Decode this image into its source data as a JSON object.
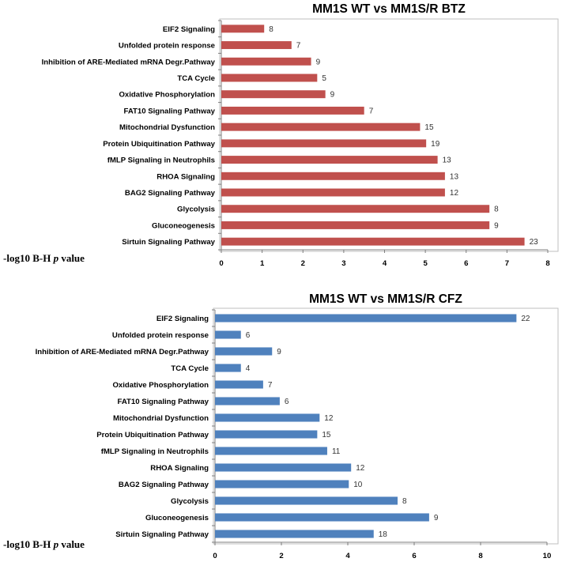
{
  "chart_data": [
    {
      "type": "bar",
      "orientation": "horizontal",
      "title": "MM1S WT vs MM1S/R BTZ",
      "xlabel": "-log10 B-H p value",
      "xlabel_parts": [
        "-log10 B-H ",
        "p",
        " value"
      ],
      "xlim": [
        0,
        8
      ],
      "xticks": [
        0,
        1,
        2,
        3,
        4,
        5,
        6,
        7,
        8
      ],
      "grid": false,
      "color": "#c0504d",
      "categories": [
        "EIF2 Signaling",
        "Unfolded protein response",
        "Inhibition of ARE-Mediated mRNA Degr.Pathway",
        "TCA Cycle",
        "Oxidative Phosphorylation",
        "FAT10 Signaling Pathway",
        "Mitochondrial Dysfunction",
        "Protein Ubiquitination Pathway",
        "fMLP Signaling in Neutrophils",
        "RHOA Signaling",
        "BAG2 Signaling Pathway",
        "Glycolysis",
        "Gluconeogenesis",
        "Sirtuin Signaling Pathway"
      ],
      "values": [
        1.05,
        1.72,
        2.2,
        2.35,
        2.55,
        3.5,
        4.87,
        5.02,
        5.3,
        5.48,
        5.48,
        6.57,
        6.57,
        7.43
      ],
      "data_labels": [
        "8",
        "7",
        "9",
        "5",
        "9",
        "7",
        "15",
        "19",
        "13",
        "13",
        "12",
        "8",
        "9",
        "23"
      ]
    },
    {
      "type": "bar",
      "orientation": "horizontal",
      "title": "MM1S WT vs MM1S/R CFZ",
      "xlabel": "-log10 B-H p value",
      "xlabel_parts": [
        "-log10 B-H ",
        "p",
        " value"
      ],
      "xlim": [
        0,
        10
      ],
      "xticks": [
        0,
        2,
        4,
        6,
        8,
        10
      ],
      "grid": false,
      "color": "#4f81bd",
      "categories": [
        "EIF2 Signaling",
        "Unfolded protein response",
        "Inhibition of ARE-Mediated mRNA Degr.Pathway",
        "TCA Cycle",
        "Oxidative Phosphorylation",
        "FAT10 Signaling Pathway",
        "Mitochondrial Dysfunction",
        "Protein Ubiquitination Pathway",
        "fMLP Signaling in Neutrophils",
        "RHOA Signaling",
        "BAG2 Signaling Pathway",
        "Glycolysis",
        "Gluconeogenesis",
        "Sirtuin Signaling Pathway"
      ],
      "values": [
        9.08,
        0.78,
        1.72,
        0.78,
        1.45,
        1.95,
        3.15,
        3.08,
        3.38,
        4.1,
        4.03,
        5.5,
        6.45,
        4.78
      ],
      "data_labels": [
        "22",
        "6",
        "9",
        "4",
        "7",
        "6",
        "12",
        "15",
        "11",
        "12",
        "10",
        "8",
        "9",
        "18"
      ]
    }
  ]
}
